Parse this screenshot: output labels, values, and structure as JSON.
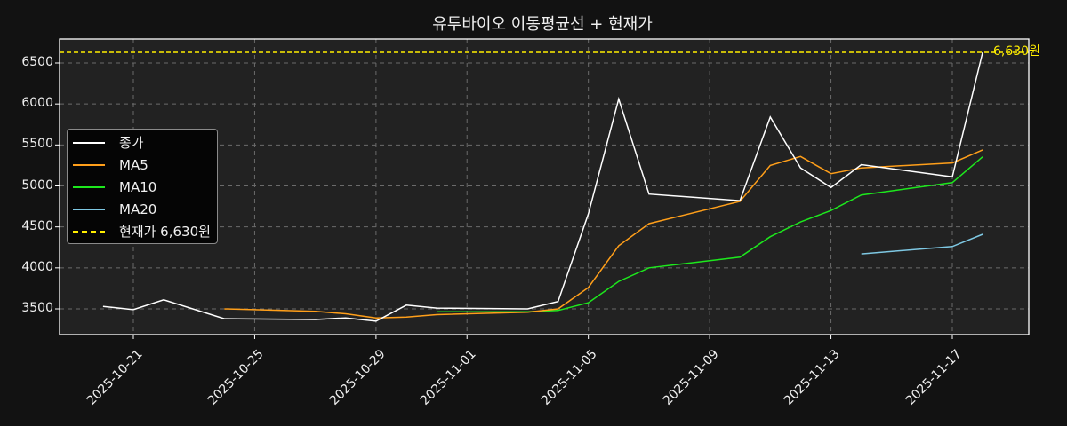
{
  "title": "유투바이오 이동평균선 + 현재가",
  "colors": {
    "background": "#121212",
    "plot_bg": "#222222",
    "close": "#ffffff",
    "ma5": "#ff9f1a",
    "ma10": "#1de81d",
    "ma20": "#7ec8e3",
    "current_price": "#ffee00",
    "grid": "#6b6b6b"
  },
  "legend": {
    "items": [
      {
        "label": "종가",
        "color": "#ffffff",
        "style": "solid"
      },
      {
        "label": "MA5",
        "color": "#ff9f1a",
        "style": "solid"
      },
      {
        "label": "MA10",
        "color": "#1de81d",
        "style": "solid"
      },
      {
        "label": "MA20",
        "color": "#7ec8e3",
        "style": "solid"
      },
      {
        "label": "현재가 6,630원",
        "color": "#ffee00",
        "style": "dashed"
      }
    ]
  },
  "annotation": {
    "label": "6,630원"
  },
  "y_ticks": [
    "3500",
    "4000",
    "4500",
    "5000",
    "5500",
    "6000",
    "6500"
  ],
  "x_ticks": [
    "2025-10-21",
    "2025-10-25",
    "2025-10-29",
    "2025-11-01",
    "2025-11-05",
    "2025-11-09",
    "2025-11-13",
    "2025-11-17"
  ],
  "chart_data": {
    "type": "line",
    "title": "유투바이오 이동평균선 + 현재가",
    "xlabel": "",
    "ylabel": "",
    "ylim": [
      3180,
      6790
    ],
    "grid": true,
    "legend_position": "center left",
    "x": [
      "2025-10-20",
      "2025-10-21",
      "2025-10-22",
      "2025-10-24",
      "2025-10-27",
      "2025-10-28",
      "2025-10-29",
      "2025-10-30",
      "2025-10-31",
      "2025-11-03",
      "2025-11-04",
      "2025-11-05",
      "2025-11-06",
      "2025-11-07",
      "2025-11-10",
      "2025-11-11",
      "2025-11-12",
      "2025-11-13",
      "2025-11-14",
      "2025-11-17",
      "2025-11-18"
    ],
    "series": [
      {
        "name": "종가",
        "values": [
          3530,
          3490,
          3610,
          3380,
          3370,
          3390,
          3350,
          3545,
          3510,
          3500,
          3590,
          4660,
          6060,
          4900,
          4820,
          5840,
          5220,
          4980,
          5260,
          5110,
          6630
        ]
      },
      {
        "name": "MA5",
        "values": [
          null,
          null,
          null,
          3500,
          3470,
          3440,
          3390,
          3400,
          3430,
          3460,
          3500,
          3760,
          4270,
          4540,
          4810,
          5250,
          5360,
          5150,
          5220,
          5280,
          5440
        ]
      },
      {
        "name": "MA10",
        "values": [
          null,
          null,
          null,
          null,
          null,
          null,
          null,
          null,
          3465,
          3465,
          3480,
          3575,
          3835,
          4000,
          4130,
          4380,
          4560,
          4700,
          4890,
          5040,
          5355
        ]
      },
      {
        "name": "MA20",
        "values": [
          null,
          null,
          null,
          null,
          null,
          null,
          null,
          null,
          null,
          null,
          null,
          null,
          null,
          null,
          null,
          null,
          null,
          null,
          4170,
          4260,
          4410
        ]
      }
    ],
    "hlines": [
      {
        "name": "현재가 6,630원",
        "value": 6630,
        "style": "dashed",
        "color": "#ffee00"
      }
    ],
    "x_tick_labels": [
      "2025-10-21",
      "2025-10-25",
      "2025-10-29",
      "2025-11-01",
      "2025-11-05",
      "2025-11-09",
      "2025-11-13",
      "2025-11-17"
    ],
    "y_tick_labels": [
      3500,
      4000,
      4500,
      5000,
      5500,
      6000,
      6500
    ],
    "annotations": [
      {
        "text": "6,630원",
        "x": "2025-11-18",
        "y": 6630
      }
    ]
  }
}
